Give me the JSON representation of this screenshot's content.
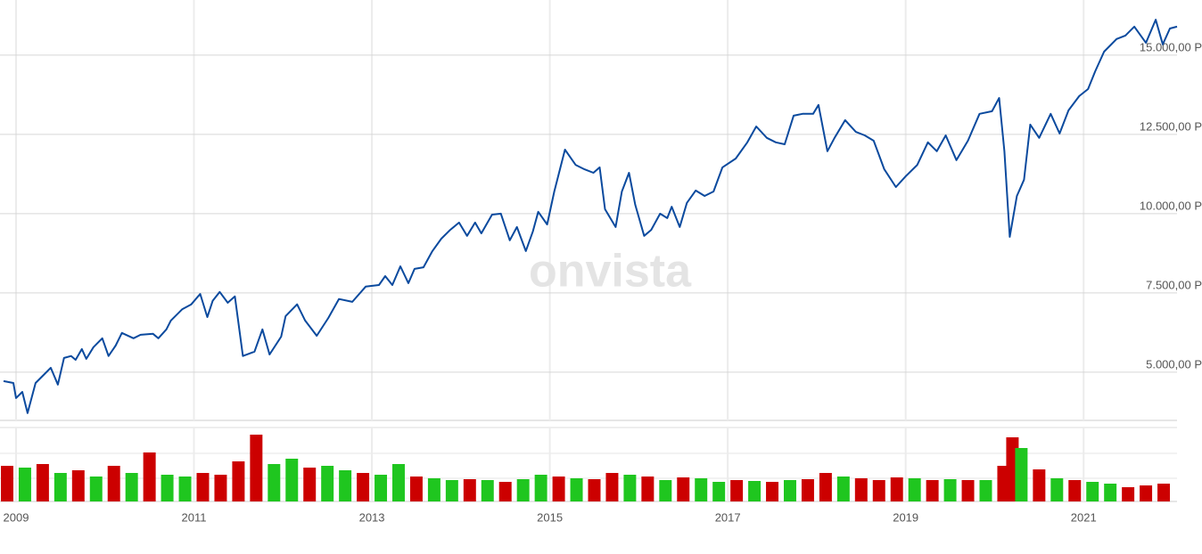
{
  "chart_data": [
    {
      "type": "line",
      "watermark": "onvista",
      "color": "#0b4a9e",
      "xlim": [
        2008.86,
        2022.05
      ],
      "ylim": [
        3480,
        16740
      ],
      "xticks": [
        2009,
        2011,
        2013,
        2015,
        2017,
        2019,
        2021
      ],
      "yticks": [
        {
          "value": 5000,
          "label": "5.000,00 P"
        },
        {
          "value": 7500,
          "label": "7.500,00 P"
        },
        {
          "value": 10000,
          "label": "10.000,00 P"
        },
        {
          "value": 12500,
          "label": "12.500,00 P"
        },
        {
          "value": 15000,
          "label": "15.000,00 P"
        }
      ],
      "grid": true,
      "x": [
        2008.86,
        2008.97,
        2009.0,
        2009.07,
        2009.13,
        2009.22,
        2009.32,
        2009.39,
        2009.47,
        2009.54,
        2009.62,
        2009.67,
        2009.74,
        2009.79,
        2009.87,
        2009.97,
        2010.04,
        2010.12,
        2010.19,
        2010.32,
        2010.4,
        2010.54,
        2010.6,
        2010.69,
        2010.74,
        2010.87,
        2010.97,
        2011.07,
        2011.15,
        2011.21,
        2011.29,
        2011.38,
        2011.46,
        2011.55,
        2011.68,
        2011.77,
        2011.85,
        2011.98,
        2012.03,
        2012.16,
        2012.25,
        2012.38,
        2012.51,
        2012.63,
        2012.78,
        2012.93,
        2013.08,
        2013.15,
        2013.23,
        2013.32,
        2013.41,
        2013.48,
        2013.58,
        2013.68,
        2013.78,
        2013.88,
        2013.98,
        2014.07,
        2014.16,
        2014.23,
        2014.35,
        2014.45,
        2014.55,
        2014.63,
        2014.73,
        2014.81,
        2014.87,
        2014.97,
        2015.05,
        2015.17,
        2015.29,
        2015.39,
        2015.49,
        2015.56,
        2015.62,
        2015.74,
        2015.81,
        2015.89,
        2015.96,
        2016.06,
        2016.14,
        2016.24,
        2016.32,
        2016.37,
        2016.46,
        2016.54,
        2016.64,
        2016.74,
        2016.84,
        2016.94,
        2017.09,
        2017.22,
        2017.32,
        2017.44,
        2017.54,
        2017.64,
        2017.74,
        2017.84,
        2017.96,
        2018.02,
        2018.12,
        2018.2,
        2018.32,
        2018.44,
        2018.54,
        2018.64,
        2018.76,
        2018.89,
        2019.0,
        2019.13,
        2019.25,
        2019.35,
        2019.45,
        2019.57,
        2019.7,
        2019.83,
        2019.97,
        2020.05,
        2020.11,
        2020.17,
        2020.25,
        2020.33,
        2020.4,
        2020.5,
        2020.63,
        2020.73,
        2020.83,
        2020.95,
        2021.05,
        2021.13,
        2021.23,
        2021.37,
        2021.47,
        2021.57,
        2021.7,
        2021.81,
        2021.89,
        2021.97,
        2022.05
      ],
      "values": [
        4720,
        4660,
        4185,
        4380,
        3710,
        4660,
        4940,
        5140,
        4610,
        5450,
        5510,
        5390,
        5730,
        5420,
        5790,
        6070,
        5510,
        5840,
        6240,
        6070,
        6180,
        6210,
        6070,
        6350,
        6630,
        6990,
        7140,
        7470,
        6740,
        7250,
        7530,
        7190,
        7390,
        5510,
        5650,
        6350,
        5560,
        6120,
        6770,
        7140,
        6630,
        6150,
        6710,
        7310,
        7220,
        7700,
        7750,
        8030,
        7750,
        8340,
        7810,
        8260,
        8310,
        8820,
        9210,
        9490,
        9720,
        9300,
        9720,
        9380,
        9970,
        10000,
        9160,
        9580,
        8820,
        9440,
        10060,
        9660,
        10700,
        12020,
        11540,
        11400,
        11290,
        11460,
        10140,
        9580,
        10700,
        11290,
        10280,
        9300,
        9490,
        10000,
        9860,
        10220,
        9580,
        10340,
        10730,
        10560,
        10700,
        11460,
        11740,
        12250,
        12750,
        12390,
        12250,
        12190,
        13090,
        13150,
        13150,
        13430,
        11970,
        12390,
        12950,
        12580,
        12470,
        12300,
        11400,
        10840,
        11180,
        11540,
        12250,
        11970,
        12470,
        11690,
        12300,
        13150,
        13230,
        13650,
        11970,
        9270,
        10560,
        11070,
        12810,
        12390,
        13150,
        12530,
        13260,
        13710,
        13930,
        14490,
        15110,
        15510,
        15620,
        15900,
        15390,
        16120,
        15340,
        15840,
        15900
      ]
    },
    {
      "type": "bar",
      "ylim": [
        0,
        83
      ],
      "x": [
        2008.9,
        2009.1,
        2009.3,
        2009.5,
        2009.7,
        2009.9,
        2010.1,
        2010.3,
        2010.5,
        2010.7,
        2010.9,
        2011.1,
        2011.3,
        2011.5,
        2011.7,
        2011.9,
        2012.1,
        2012.3,
        2012.5,
        2012.7,
        2012.9,
        2013.1,
        2013.3,
        2013.5,
        2013.7,
        2013.9,
        2014.1,
        2014.3,
        2014.5,
        2014.7,
        2014.9,
        2015.1,
        2015.3,
        2015.5,
        2015.7,
        2015.9,
        2016.1,
        2016.3,
        2016.5,
        2016.7,
        2016.9,
        2017.1,
        2017.3,
        2017.5,
        2017.7,
        2017.9,
        2018.1,
        2018.3,
        2018.5,
        2018.7,
        2018.9,
        2019.1,
        2019.3,
        2019.5,
        2019.7,
        2019.9,
        2020.1,
        2020.2,
        2020.3,
        2020.5,
        2020.7,
        2020.9,
        2021.1,
        2021.3,
        2021.5,
        2021.7,
        2021.9
      ],
      "values": [
        40,
        38,
        42,
        32,
        35,
        28,
        40,
        32,
        55,
        30,
        28,
        32,
        30,
        45,
        75,
        42,
        48,
        38,
        40,
        35,
        32,
        30,
        42,
        28,
        26,
        24,
        25,
        24,
        22,
        25,
        30,
        28,
        26,
        25,
        32,
        30,
        28,
        24,
        27,
        26,
        22,
        24,
        23,
        22,
        24,
        25,
        32,
        28,
        26,
        24,
        27,
        26,
        24,
        25,
        24,
        24,
        40,
        72,
        60,
        36,
        26,
        24,
        22,
        20,
        16,
        18,
        20
      ],
      "colors": [
        "#cc0000",
        "#1fc61f",
        "#cc0000",
        "#1fc61f",
        "#cc0000",
        "#1fc61f",
        "#cc0000",
        "#1fc61f",
        "#cc0000",
        "#1fc61f",
        "#1fc61f",
        "#cc0000",
        "#cc0000",
        "#cc0000",
        "#cc0000",
        "#1fc61f",
        "#1fc61f",
        "#cc0000",
        "#1fc61f",
        "#1fc61f",
        "#cc0000",
        "#1fc61f",
        "#1fc61f",
        "#cc0000",
        "#1fc61f",
        "#1fc61f",
        "#cc0000",
        "#1fc61f",
        "#cc0000",
        "#1fc61f",
        "#1fc61f",
        "#cc0000",
        "#1fc61f",
        "#cc0000",
        "#cc0000",
        "#1fc61f",
        "#cc0000",
        "#1fc61f",
        "#cc0000",
        "#1fc61f",
        "#1fc61f",
        "#cc0000",
        "#1fc61f",
        "#cc0000",
        "#1fc61f",
        "#cc0000",
        "#cc0000",
        "#1fc61f",
        "#cc0000",
        "#cc0000",
        "#cc0000",
        "#1fc61f",
        "#cc0000",
        "#1fc61f",
        "#cc0000",
        "#1fc61f",
        "#cc0000",
        "#cc0000",
        "#1fc61f",
        "#cc0000",
        "#1fc61f",
        "#cc0000",
        "#1fc61f",
        "#1fc61f",
        "#cc0000",
        "#cc0000",
        "#cc0000"
      ]
    }
  ]
}
